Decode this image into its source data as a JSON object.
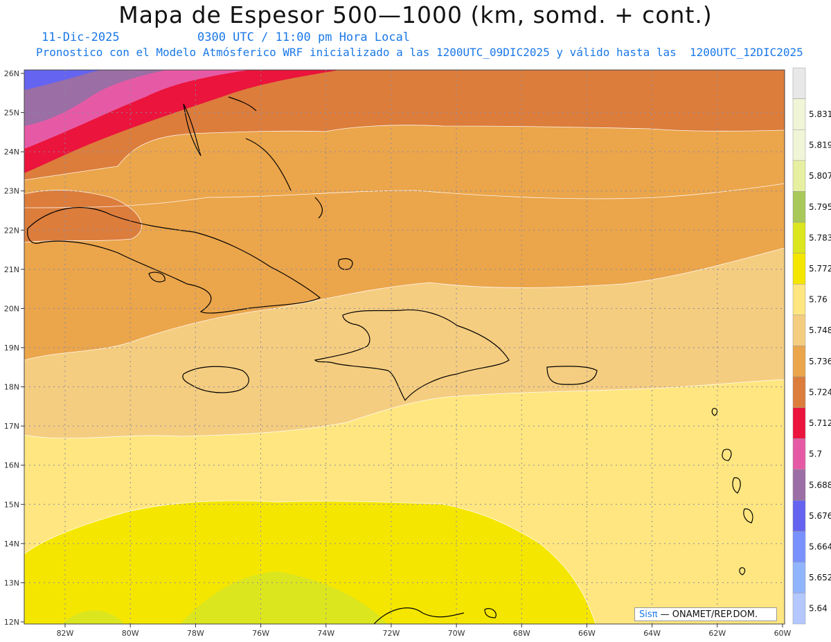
{
  "title": "Mapa de Espesor 500—1000 (km, somd. + cont.)",
  "date": "11-Dic-2025",
  "time": "0300 UTC / 11:00 pm Hora Local",
  "forecast": "Pronostico con el Modelo Atmósferico WRF inicializado a las 1200UTC_09DIC2025 y válido hasta las  1200UTC_12DIC2025",
  "lat_labels": [
    "26N",
    "25N",
    "24N",
    "23N",
    "22N",
    "21N",
    "20N",
    "19N",
    "18N",
    "17N",
    "16N",
    "15N",
    "14N",
    "13N",
    "12N"
  ],
  "lon_labels": [
    "82W",
    "80W",
    "78W",
    "76W",
    "74W",
    "72W",
    "70W",
    "68W",
    "66W",
    "64W",
    "62W",
    "60W"
  ],
  "colorbar": {
    "labels": [
      "5.831",
      "5.819",
      "5.807",
      "5.795",
      "5.783",
      "5.772",
      "5.76",
      "5.748",
      "5.736",
      "5.724",
      "5.712",
      "5.7",
      "5.688",
      "5.676",
      "5.664",
      "5.652",
      "5.64"
    ],
    "colors": [
      "#e8e8e8",
      "#f0f5d8",
      "#e6f0a0",
      "#a8c85a",
      "#dce61e",
      "#f5e600",
      "#ffe680",
      "#f5cd80",
      "#eba54b",
      "#dc7d3c",
      "#eb143c",
      "#e65aa5",
      "#9b6ea5",
      "#6464f0",
      "#7891ff",
      "#91b4ff",
      "#b4c8ff"
    ]
  },
  "credit": {
    "brand": "Sisπ",
    "text": " — ONAMET/REP.DOM."
  }
}
